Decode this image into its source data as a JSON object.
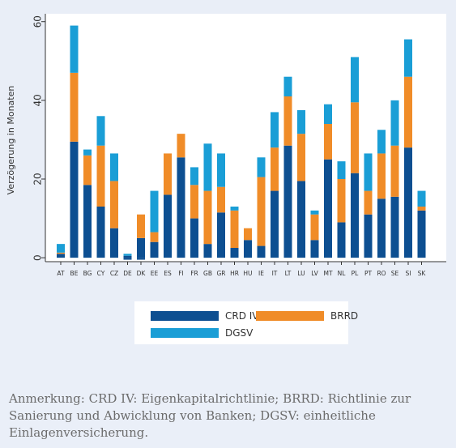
{
  "chart_data": {
    "type": "bar",
    "stacked": true,
    "ylabel": "Verzögerung in Monaten",
    "xlabel": "",
    "ylim": [
      -1,
      62
    ],
    "yticks": [
      0,
      20,
      40,
      60
    ],
    "grid": false,
    "legend_position": "bottom",
    "categories": [
      "AT",
      "BE",
      "BG",
      "CY",
      "CZ",
      "DE",
      "DK",
      "EE",
      "ES",
      "FI",
      "FR",
      "GB",
      "GR",
      "HR",
      "HU",
      "IE",
      "IT",
      "LT",
      "LU",
      "LV",
      "MT",
      "NL",
      "PL",
      "PT",
      "RO",
      "SE",
      "SI",
      "SK"
    ],
    "series": [
      {
        "name": "CRD IV",
        "color": "#0d4f91",
        "values": [
          1,
          29.5,
          18.5,
          13,
          7.5,
          0.5,
          5,
          4,
          16,
          25.5,
          10,
          3.5,
          11.5,
          2.5,
          4.5,
          3,
          17,
          28.5,
          19.5,
          4.5,
          25,
          9,
          21.5,
          11,
          15,
          15.5,
          28,
          12
        ]
      },
      {
        "name": "BRRD",
        "color": "#f08c28",
        "values": [
          0.3,
          17.5,
          7.5,
          15.5,
          12,
          0,
          6,
          2.5,
          10.5,
          6,
          8.5,
          13.5,
          6.5,
          9.5,
          3,
          17.5,
          11,
          12.5,
          12,
          6.5,
          9,
          11,
          18,
          6,
          11.5,
          13,
          18,
          1
        ]
      },
      {
        "name": "DGSV",
        "color": "#1a9ed6",
        "values": [
          2.2,
          12,
          1.5,
          7.5,
          7,
          0.5,
          0,
          10.5,
          0,
          0,
          4.5,
          12,
          8.5,
          1,
          0,
          5,
          9,
          5,
          6,
          1,
          5,
          4.5,
          11.5,
          9.5,
          6,
          11.5,
          9.5,
          4
        ]
      }
    ],
    "negative_values": {
      "DE": -0.5,
      "DK": -0.5
    }
  },
  "legend": {
    "crd_label": "CRD IV",
    "brrd_label": "BRRD",
    "dgsv_label": "DGSV"
  },
  "footnote": "Anmerkung: CRD IV: Eigenkapitalrichtlinie; BRRD: Richtlinie zur Sanierung und Abwicklung von Banken; DGSV: einheitliche Einlagenversicherung."
}
